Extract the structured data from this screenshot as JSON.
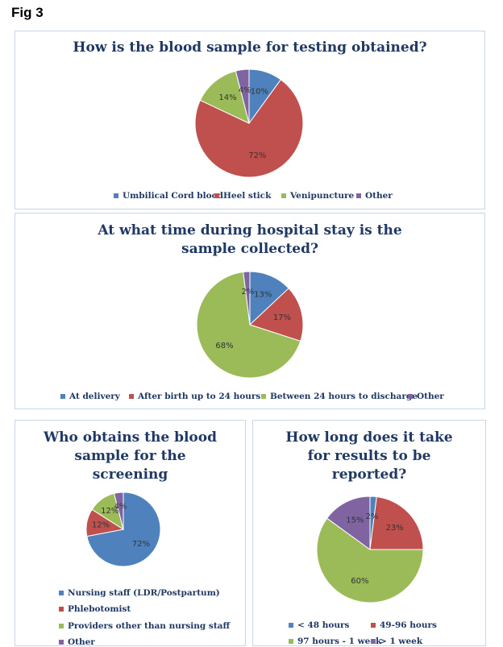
{
  "fig_label": "Fig 3",
  "colors": {
    "blue": "#4f81bd",
    "red": "#c0504d",
    "green": "#9bbb59",
    "purple": "#8064a2"
  },
  "chart_data": [
    {
      "type": "pie",
      "title": "How is the blood sample for testing obtained?",
      "labels": [
        "Umbilical Cord blood",
        "Heel stick",
        "Venipuncture",
        "Other"
      ],
      "values": [
        10,
        72,
        14,
        4
      ],
      "data_labels": [
        "10%",
        "72%",
        "14%",
        "4%"
      ],
      "legend": "bottom"
    },
    {
      "type": "pie",
      "title": "At what time during hospital stay is the sample collected?",
      "labels": [
        "At delivery",
        "After birth up to 24 hours",
        "Between 24 hours to discharge",
        "Other"
      ],
      "values": [
        13,
        17,
        68,
        2
      ],
      "data_labels": [
        "13%",
        "17%",
        "68%",
        "2%"
      ],
      "legend": "bottom"
    },
    {
      "type": "pie",
      "title": "Who obtains the blood sample for the screening",
      "labels": [
        "Nursing staff (LDR/Postpartum)",
        "Phlebotomist",
        "Providers other than nursing staff",
        "Other"
      ],
      "values": [
        72,
        12,
        12,
        4
      ],
      "data_labels": [
        "72%",
        "12%",
        "12%",
        "4%"
      ],
      "legend": "bottom"
    },
    {
      "type": "pie",
      "title": "How long does it take for results to be reported?",
      "labels": [
        "< 48 hours",
        "49-96 hours",
        "97 hours - 1 week",
        "> 1 week"
      ],
      "values": [
        2,
        23,
        60,
        15
      ],
      "data_labels": [
        "2%",
        "23%",
        "60%",
        "15%"
      ],
      "legend": "bottom"
    }
  ]
}
